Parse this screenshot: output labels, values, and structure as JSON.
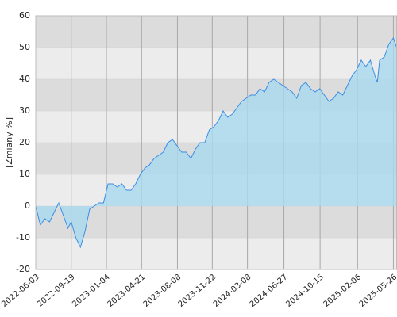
{
  "chart_data": {
    "type": "area",
    "y_label": "[Zmiany %]",
    "x": [
      "2022-06-03",
      "2022-06-17",
      "2022-07-01",
      "2022-07-15",
      "2022-07-29",
      "2022-08-12",
      "2022-08-26",
      "2022-09-09",
      "2022-09-19",
      "2022-10-03",
      "2022-10-17",
      "2022-10-31",
      "2022-11-14",
      "2022-11-28",
      "2022-12-12",
      "2022-12-26",
      "2023-01-09",
      "2023-01-23",
      "2023-02-06",
      "2023-02-20",
      "2023-03-06",
      "2023-03-20",
      "2023-04-03",
      "2023-04-17",
      "2023-05-01",
      "2023-05-15",
      "2023-05-29",
      "2023-06-12",
      "2023-06-26",
      "2023-07-10",
      "2023-07-24",
      "2023-08-07",
      "2023-08-21",
      "2023-09-04",
      "2023-09-18",
      "2023-10-02",
      "2023-10-16",
      "2023-10-30",
      "2023-11-13",
      "2023-11-27",
      "2023-12-11",
      "2023-12-25",
      "2024-01-08",
      "2024-01-22",
      "2024-02-05",
      "2024-02-19",
      "2024-03-04",
      "2024-03-18",
      "2024-04-01",
      "2024-04-15",
      "2024-04-29",
      "2024-05-13",
      "2024-05-27",
      "2024-06-10",
      "2024-06-24",
      "2024-07-08",
      "2024-07-22",
      "2024-08-05",
      "2024-08-19",
      "2024-09-02",
      "2024-09-16",
      "2024-09-30",
      "2024-10-14",
      "2024-10-28",
      "2024-11-11",
      "2024-11-25",
      "2024-12-09",
      "2024-12-23",
      "2025-01-06",
      "2025-01-20",
      "2025-02-03",
      "2025-02-17",
      "2025-03-03",
      "2025-03-17",
      "2025-03-31",
      "2025-04-07",
      "2025-04-14",
      "2025-04-28",
      "2025-05-12",
      "2025-05-26",
      "2025-06-05"
    ],
    "values": [
      0,
      -6,
      -4,
      -5,
      -2,
      1,
      -3,
      -7,
      -5,
      -10,
      -13,
      -8,
      -1,
      0,
      1,
      1,
      7,
      7,
      6,
      7,
      5,
      5,
      7,
      10,
      12,
      13,
      15,
      16,
      17,
      20,
      21,
      19,
      17,
      17,
      15,
      18,
      20,
      20,
      24,
      25,
      27,
      30,
      28,
      29,
      31,
      33,
      34,
      35,
      35,
      37,
      36,
      39,
      40,
      39,
      38,
      37,
      36,
      34,
      38,
      39,
      37,
      36,
      37,
      35,
      33,
      34,
      36,
      35,
      38,
      41,
      43,
      46,
      44,
      46,
      41,
      39,
      46,
      47,
      51,
      53,
      50
    ],
    "color": "#3a8ee6",
    "fill": "#a9d9ee",
    "xlim": [
      "2022-06-03",
      "2025-06-06"
    ],
    "xticks": [
      "2022-06-03",
      "2022-09-19",
      "2023-01-04",
      "2023-04-21",
      "2023-08-08",
      "2023-11-22",
      "2024-03-08",
      "2024-06-27",
      "2024-10-15",
      "2025-02-06",
      "2025-05-26"
    ],
    "ylim": [
      -20,
      60
    ],
    "yticks": [
      -20,
      -10,
      0,
      10,
      20,
      30,
      40,
      50,
      60
    ],
    "grid": true
  }
}
